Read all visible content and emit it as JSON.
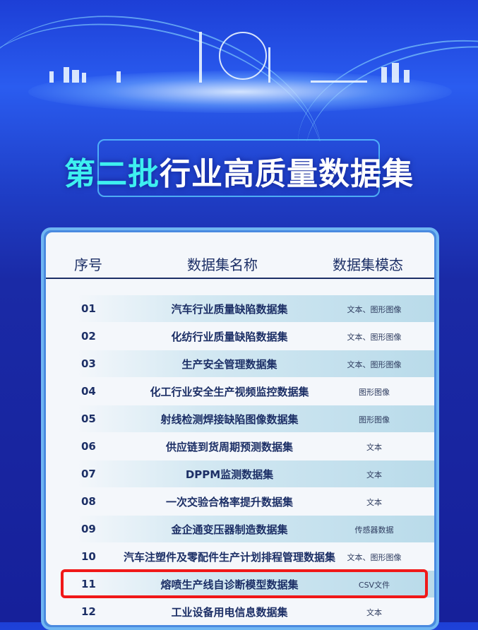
{
  "title": {
    "highlight": "第二批",
    "rest": "行业高质量数据集"
  },
  "table": {
    "headers": [
      "序号",
      "数据集名称",
      "数据集模态"
    ],
    "rows": [
      {
        "no": "01",
        "name": "汽车行业质量缺陷数据集",
        "mode": "文本、图形图像"
      },
      {
        "no": "02",
        "name": "化纺行业质量缺陷数据集",
        "mode": "文本、图形图像"
      },
      {
        "no": "03",
        "name": "生产安全管理数据集",
        "mode": "文本、图形图像"
      },
      {
        "no": "04",
        "name": "化工行业安全生产视频监控数据集",
        "mode": "图形图像"
      },
      {
        "no": "05",
        "name": "射线检测焊接缺陷图像数据集",
        "mode": "图形图像"
      },
      {
        "no": "06",
        "name": "供应链到货周期预测数据集",
        "mode": "文本"
      },
      {
        "no": "07",
        "name": "DPPM监测数据集",
        "mode": "文本"
      },
      {
        "no": "08",
        "name": "一次交验合格率提升数据集",
        "mode": "文本"
      },
      {
        "no": "09",
        "name": "金企通变压器制造数据集",
        "mode": "传感器数据"
      },
      {
        "no": "10",
        "name": "汽车注塑件及零配件生产计划排程管理数据集",
        "mode": "文本、图形图像"
      },
      {
        "no": "11",
        "name": "熔喷生产线自诊断模型数据集",
        "mode": "CSV文件"
      },
      {
        "no": "12",
        "name": "工业设备用电信息数据集",
        "mode": "文本"
      }
    ],
    "highlighted_row": "11",
    "highlight_color": "#f01818"
  }
}
